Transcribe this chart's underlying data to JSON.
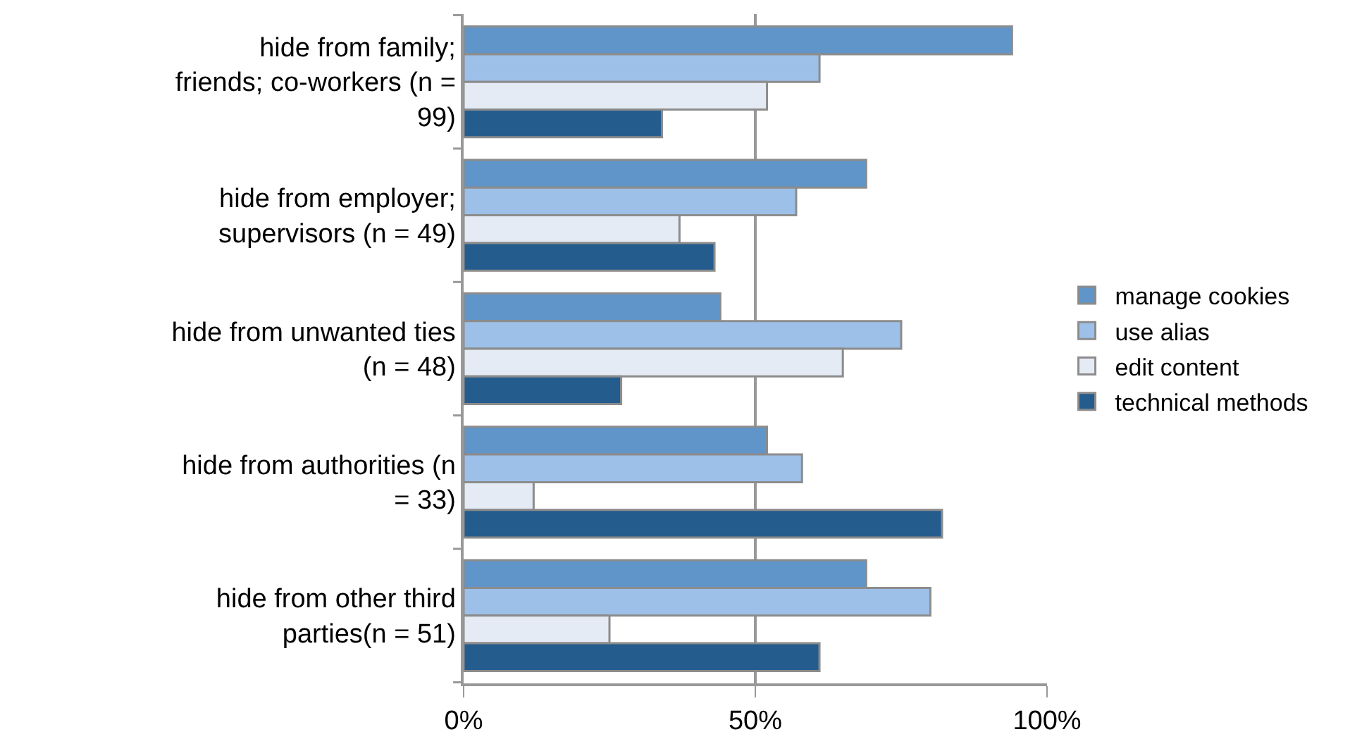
{
  "chart_data": {
    "type": "bar",
    "orientation": "horizontal",
    "categories": [
      "hide from family; friends; co-workers (n = 99)",
      "hide from employer; supervisors (n = 49)",
      "hide from unwanted ties (n = 48)",
      "hide from authorities (n = 33)",
      "hide from other third parties(n = 51)"
    ],
    "series": [
      {
        "name": "manage cookies",
        "color": "#5f95c9",
        "values": [
          94,
          69,
          44,
          52,
          69
        ]
      },
      {
        "name": "use alias",
        "color": "#9dc0e8",
        "values": [
          61,
          57,
          75,
          58,
          80
        ]
      },
      {
        "name": "edit content",
        "color": "#e4ebf5",
        "values": [
          52,
          37,
          65,
          12,
          25
        ]
      },
      {
        "name": "technical methods",
        "color": "#255c8e",
        "values": [
          34,
          43,
          27,
          82,
          61
        ]
      }
    ],
    "xlim": [
      0,
      100
    ],
    "xticks": [
      {
        "value": 0,
        "label": "0%"
      },
      {
        "value": 50,
        "label": "50%"
      },
      {
        "value": 100,
        "label": "100%"
      }
    ],
    "grid": "x",
    "legend": "right"
  }
}
